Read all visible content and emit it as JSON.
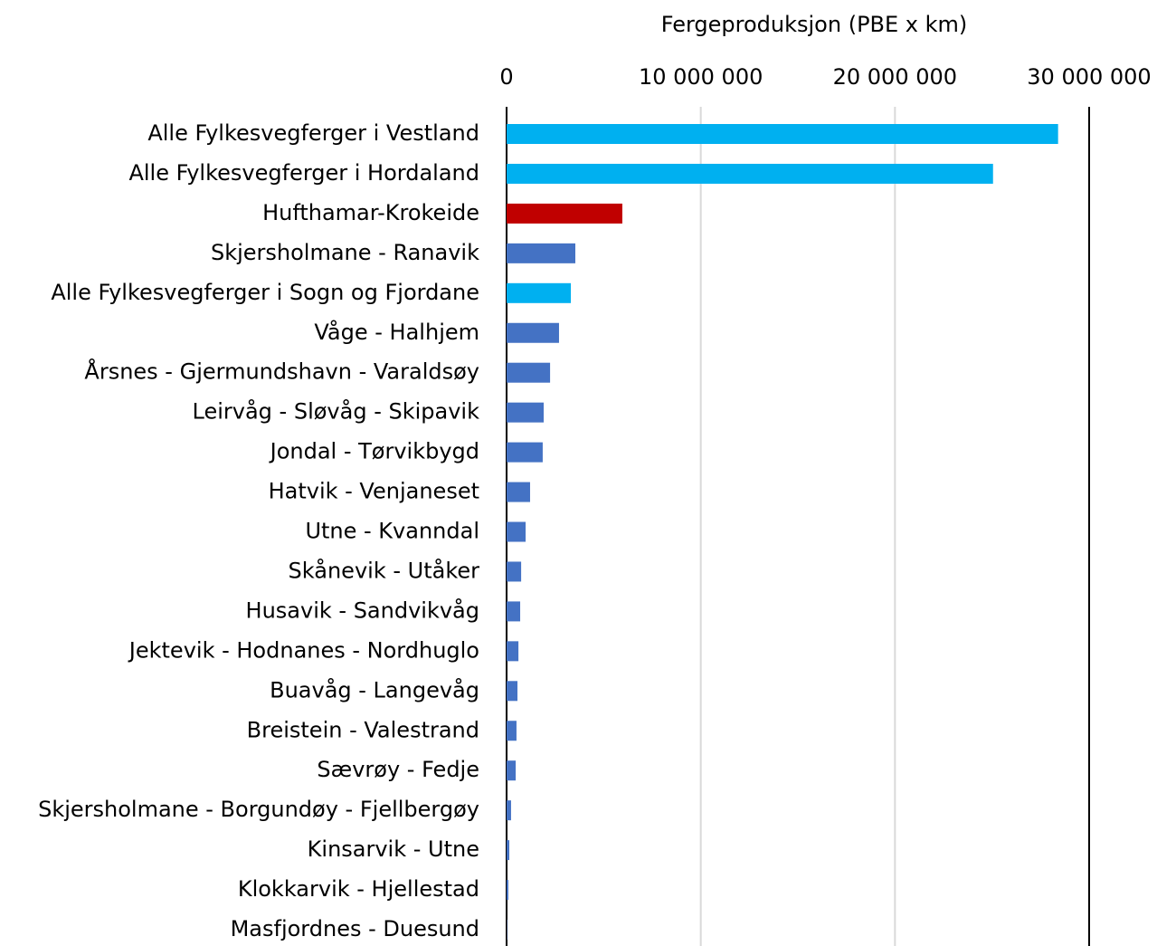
{
  "chart_data": {
    "type": "bar",
    "orientation": "horizontal",
    "xlabel": "Fergeproduksjon (PBE x km)",
    "categories": [
      "Alle Fylkesvegferger i Vestland",
      "Alle Fylkesvegferger i Hordaland",
      "Hufthamar-Krokeide",
      "Skjersholmane - Ranavik",
      "Alle Fylkesvegferger i Sogn og Fjordane",
      "Våge - Halhjem",
      "Årsnes - Gjermundshavn - Varaldsøy",
      "Leirvåg - Sløvåg - Skipavik",
      "Jondal - Tørvikbygd",
      "Hatvik - Venjaneset",
      "Utne - Kvanndal",
      "Skånevik - Utåker",
      "Husavik - Sandvikvåg",
      "Jektevik - Hodnanes - Nordhuglo",
      "Buavåg - Langevåg",
      "Breistein - Valestrand",
      "Sævrøy - Fedje",
      "Skjersholmane - Borgundøy - Fjellbergøy",
      "Kinsarvik - Utne",
      "Klokkarvik - Hjellestad",
      "Masfjordnes - Duesund"
    ],
    "values": [
      28400000,
      25050000,
      5960000,
      3540000,
      3310000,
      2700000,
      2240000,
      1910000,
      1860000,
      1210000,
      980000,
      750000,
      700000,
      610000,
      560000,
      510000,
      470000,
      230000,
      140000,
      90000,
      20000
    ],
    "colors": [
      "#00b0f0",
      "#00b0f0",
      "#c00000",
      "#4472c4",
      "#00b0f0",
      "#4472c4",
      "#4472c4",
      "#4472c4",
      "#4472c4",
      "#4472c4",
      "#4472c4",
      "#4472c4",
      "#4472c4",
      "#4472c4",
      "#4472c4",
      "#4472c4",
      "#4472c4",
      "#4472c4",
      "#4472c4",
      "#4472c4",
      "#4472c4"
    ],
    "xlim": [
      0,
      30000000
    ],
    "xticks": [
      0,
      {
        "value": 10000000,
        "label": "10 000 000"
      },
      {
        "value": 20000000,
        "label": "20 000 000"
      },
      {
        "value": 30000000,
        "label": "30 000 000"
      }
    ],
    "grid": true,
    "xaxis_position": "top"
  }
}
